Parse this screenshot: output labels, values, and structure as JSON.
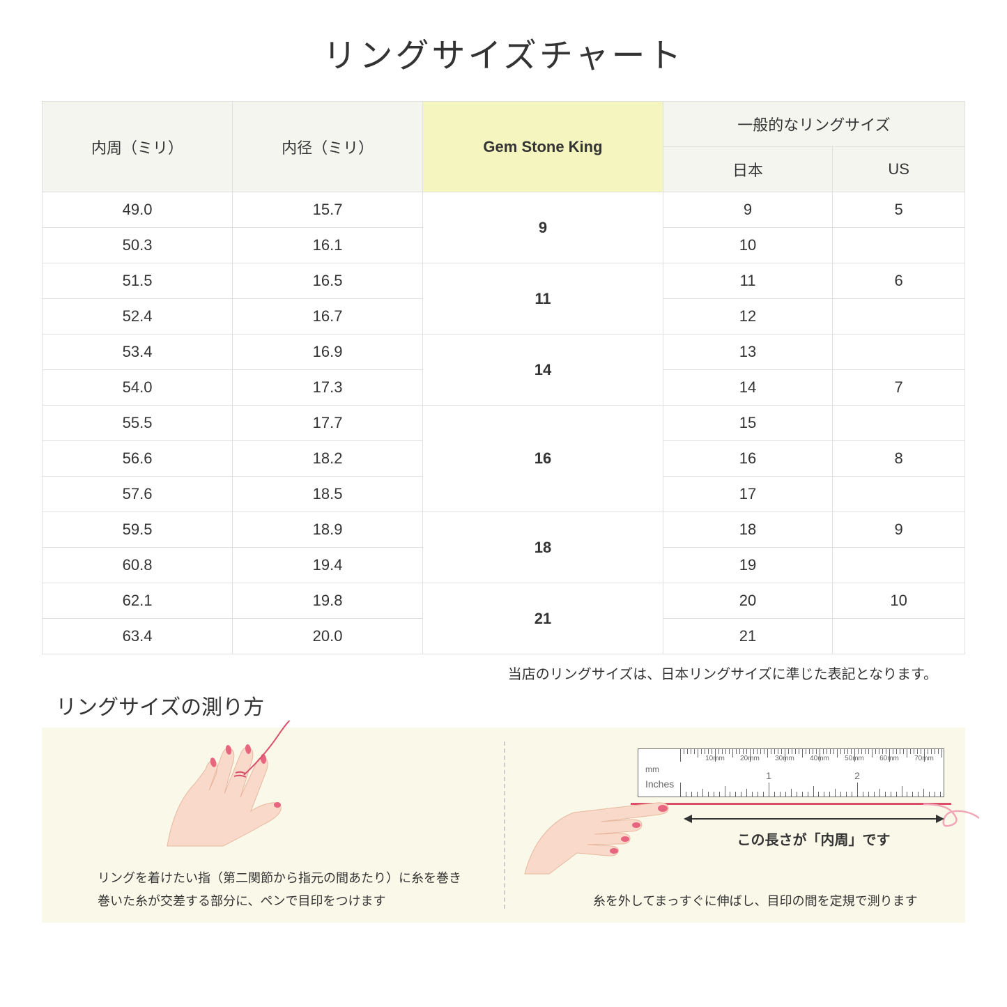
{
  "title": "リングサイズチャート",
  "headers": {
    "col1": "内周（ミリ）",
    "col2": "内径（ミリ）",
    "col3": "Gem Stone King",
    "col4_group": "一般的なリングサイズ",
    "col4a": "日本",
    "col4b": "US"
  },
  "rows": [
    {
      "c": "49.0",
      "d": "15.7",
      "jp": "9",
      "us": "5"
    },
    {
      "c": "50.3",
      "d": "16.1",
      "jp": "10",
      "us": ""
    },
    {
      "c": "51.5",
      "d": "16.5",
      "jp": "11",
      "us": "6"
    },
    {
      "c": "52.4",
      "d": "16.7",
      "jp": "12",
      "us": ""
    },
    {
      "c": "53.4",
      "d": "16.9",
      "jp": "13",
      "us": ""
    },
    {
      "c": "54.0",
      "d": "17.3",
      "jp": "14",
      "us": "7"
    },
    {
      "c": "55.5",
      "d": "17.7",
      "jp": "15",
      "us": ""
    },
    {
      "c": "56.6",
      "d": "18.2",
      "jp": "16",
      "us": "8"
    },
    {
      "c": "57.6",
      "d": "18.5",
      "jp": "17",
      "us": ""
    },
    {
      "c": "59.5",
      "d": "18.9",
      "jp": "18",
      "us": "9"
    },
    {
      "c": "60.8",
      "d": "19.4",
      "jp": "19",
      "us": ""
    },
    {
      "c": "62.1",
      "d": "19.8",
      "jp": "20",
      "us": "10"
    },
    {
      "c": "63.4",
      "d": "20.0",
      "jp": "21",
      "us": ""
    }
  ],
  "gsk_groups": [
    {
      "span": 2,
      "val": "9"
    },
    {
      "span": 2,
      "val": "11"
    },
    {
      "span": 2,
      "val": "14"
    },
    {
      "span": 3,
      "val": "16"
    },
    {
      "span": 2,
      "val": "18"
    },
    {
      "span": 2,
      "val": "21"
    }
  ],
  "note": "当店のリングサイズは、日本リングサイズに準じた表記となります。",
  "measure_title": "リングサイズの測り方",
  "caption_left": "リングを着けたい指（第二関節から指元の間あたり）に糸を巻き\n巻いた糸が交差する部分に、ペンで目印をつけます",
  "caption_right": "糸を外してまっすぐに伸ばし、目印の間を定規で測ります",
  "ruler_mm": "mm",
  "ruler_in": "Inches",
  "ruler_mm_labels": [
    "10mm",
    "20mm",
    "30mm",
    "40mm",
    "50mm",
    "60mm",
    "70mm"
  ],
  "ruler_in_labels": [
    "1",
    "2"
  ],
  "arrow_label": "この長さが「内周」です",
  "colors": {
    "header_bg": "#f5f5f0",
    "highlight_bg": "#f5f5c0",
    "border": "#e0e0e0",
    "measure_bg": "#faf8e8",
    "skin": "#f9d9c9",
    "nail": "#e8657f",
    "thread": "#d94f6a"
  }
}
